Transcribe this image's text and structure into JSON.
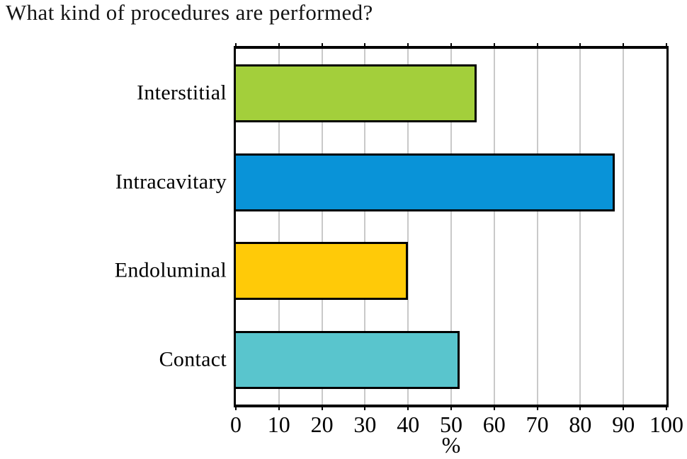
{
  "chart_data": {
    "type": "bar",
    "orientation": "horizontal",
    "title": "What kind of procedures are performed?",
    "categories": [
      "Interstitial",
      "Intracavitary",
      "Endoluminal",
      "Contact"
    ],
    "values": [
      56,
      88,
      40,
      52
    ],
    "xlabel": "%",
    "xlim": [
      0,
      100
    ],
    "xticks": [
      0,
      10,
      20,
      30,
      40,
      50,
      60,
      70,
      80,
      90,
      100
    ],
    "grid": "vertical",
    "legend": "none",
    "colors": {
      "Interstitial": "#A3CF3B",
      "Intracavitary": "#0993D8",
      "Endoluminal": "#FFCA08",
      "Contact": "#59C5CD"
    },
    "bar_outline_color": "#000000",
    "gridline_color": "#C9C9C9",
    "axis_frame_color": "#000000",
    "background_color": "#FFFFFF"
  }
}
